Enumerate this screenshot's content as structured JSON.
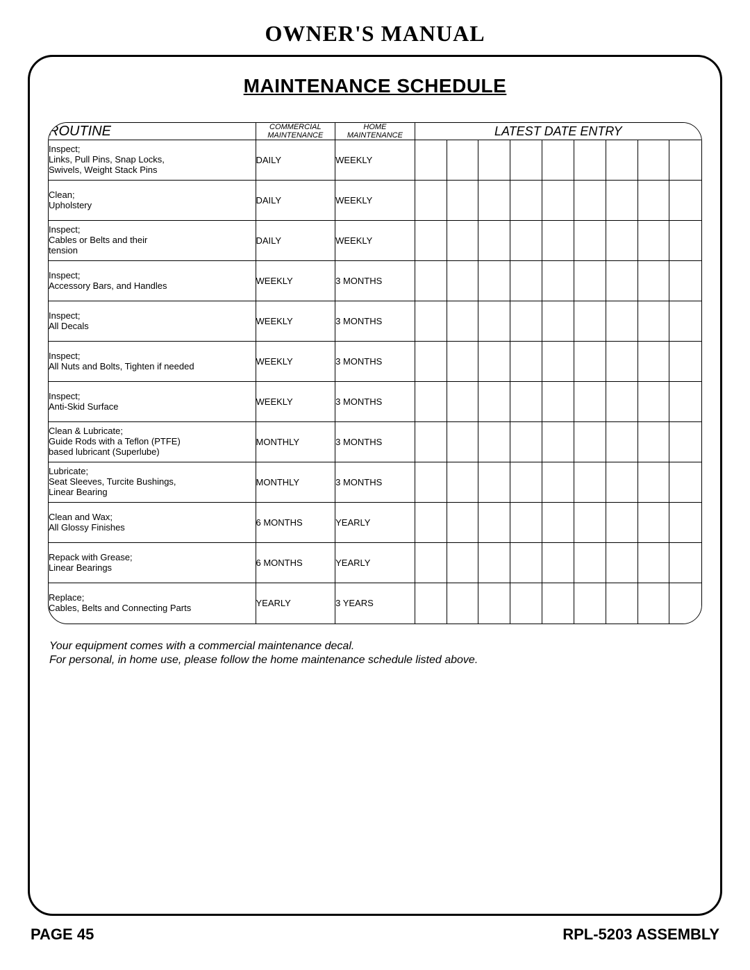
{
  "page_title": "OWNER'S MANUAL",
  "section_title": "MAINTENANCE SCHEDULE",
  "headers": {
    "routine": "ROUTINE",
    "commercial_line1": "COMMERCIAL",
    "commercial_line2": "MAINTENANCE",
    "home_line1": "HOME",
    "home_line2": "MAINTENANCE",
    "latest": "LATEST DATE ENTRY"
  },
  "entry_columns": 9,
  "rows": [
    {
      "routine_l1": "Inspect;",
      "routine_l2": "Links, Pull Pins, Snap Locks,",
      "routine_l3": "Swivels, Weight Stack Pins",
      "commercial": "DAILY",
      "home": "WEEKLY"
    },
    {
      "routine_l1": "Clean;",
      "routine_l2": "Upholstery",
      "routine_l3": "",
      "commercial": "DAILY",
      "home": "WEEKLY"
    },
    {
      "routine_l1": "Inspect;",
      "routine_l2": "Cables or Belts and their",
      "routine_l3": "tension",
      "commercial": "DAILY",
      "home": "WEEKLY"
    },
    {
      "routine_l1": "Inspect;",
      "routine_l2": "Accessory Bars, and Handles",
      "routine_l3": "",
      "commercial": "WEEKLY",
      "home": "3 MONTHS"
    },
    {
      "routine_l1": "Inspect;",
      "routine_l2": "All Decals",
      "routine_l3": "",
      "commercial": "WEEKLY",
      "home": "3 MONTHS"
    },
    {
      "routine_l1": "Inspect;",
      "routine_l2": "All Nuts and Bolts, Tighten if needed",
      "routine_l3": "",
      "commercial": "WEEKLY",
      "home": "3 MONTHS"
    },
    {
      "routine_l1": "Inspect;",
      "routine_l2": "Anti-Skid Surface",
      "routine_l3": "",
      "commercial": "WEEKLY",
      "home": "3 MONTHS"
    },
    {
      "routine_l1": "Clean & Lubricate;",
      "routine_l2": "Guide Rods with a Teflon (PTFE)",
      "routine_l3": "based lubricant (Superlube)",
      "commercial": "MONTHLY",
      "home": "3 MONTHS"
    },
    {
      "routine_l1": "Lubricate;",
      "routine_l2": "Seat Sleeves, Turcite Bushings,",
      "routine_l3": "Linear Bearing",
      "commercial": "MONTHLY",
      "home": "3 MONTHS"
    },
    {
      "routine_l1": "Clean and Wax;",
      "routine_l2": "All Glossy Finishes",
      "routine_l3": "",
      "commercial": "6 MONTHS",
      "home": "YEARLY"
    },
    {
      "routine_l1": "Repack with Grease;",
      "routine_l2": "Linear Bearings",
      "routine_l3": "",
      "commercial": "6 MONTHS",
      "home": "YEARLY"
    },
    {
      "routine_l1": "Replace;",
      "routine_l2": "Cables, Belts and Connecting Parts",
      "routine_l3": "",
      "commercial": "YEARLY",
      "home": "3 YEARS"
    }
  ],
  "note_line1": "Your equipment comes with a commercial maintenance decal.",
  "note_line2": "For personal, in home use, please follow the home maintenance schedule listed above.",
  "footer_left": "PAGE 45",
  "footer_right": "RPL-5203 ASSEMBLY",
  "colors": {
    "border": "#000000",
    "text": "#000000",
    "background": "#ffffff"
  },
  "fonts": {
    "title_family": "Times New Roman",
    "body_family": "Arial"
  }
}
